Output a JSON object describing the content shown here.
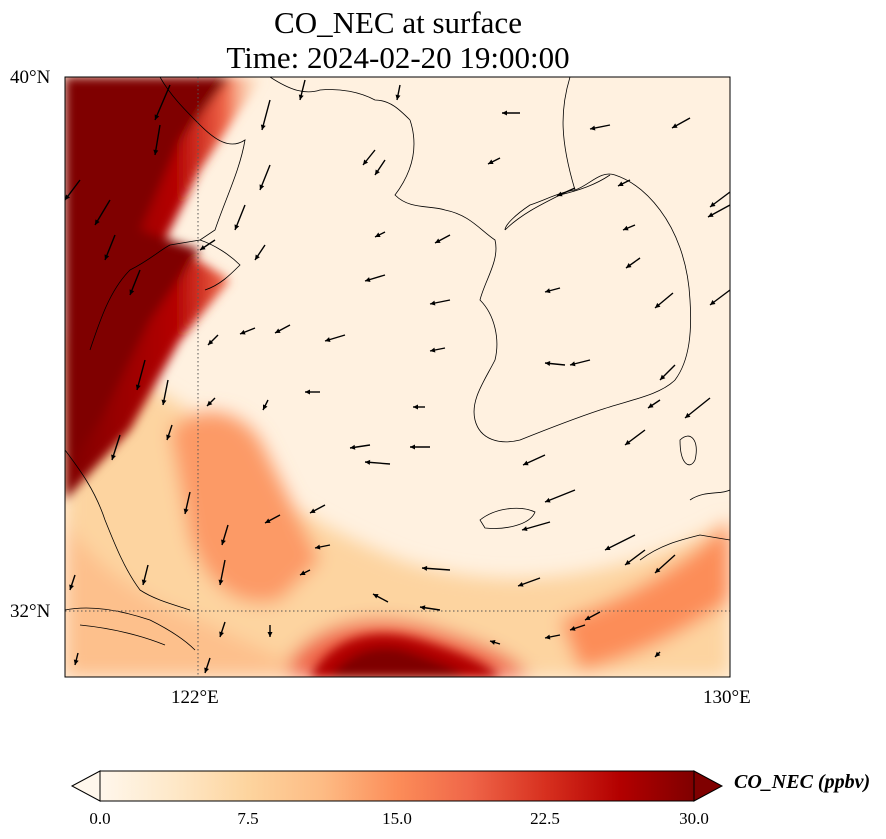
{
  "title": {
    "line1": "CO_NEC at surface",
    "line2": "Time: 2024-02-20 19:00:00"
  },
  "map": {
    "lat_range": [
      31.0,
      40.0
    ],
    "lon_range": [
      120.0,
      130.0
    ],
    "lat_ticks": [
      {
        "value": 40,
        "label": "40°N"
      },
      {
        "value": 32,
        "label": "32°N"
      }
    ],
    "lon_ticks": [
      {
        "value": 122,
        "label": "122°E"
      },
      {
        "value": 130,
        "label": "130°E"
      }
    ],
    "gridlines": "dotted at 122°E and 32°N"
  },
  "colorbar": {
    "label": "CO_NEC (ppbv)",
    "colormap": "OrRd",
    "range": [
      0.0,
      30.0
    ],
    "extend": "both",
    "ticks": [
      "0.0",
      "7.5",
      "15.0",
      "22.5",
      "30.0"
    ],
    "colors": [
      "#fff7ec",
      "#fee8c8",
      "#fdd49e",
      "#fdbb84",
      "#fc8d59",
      "#ef6548",
      "#d7301f",
      "#b30000",
      "#7f0000"
    ]
  }
}
